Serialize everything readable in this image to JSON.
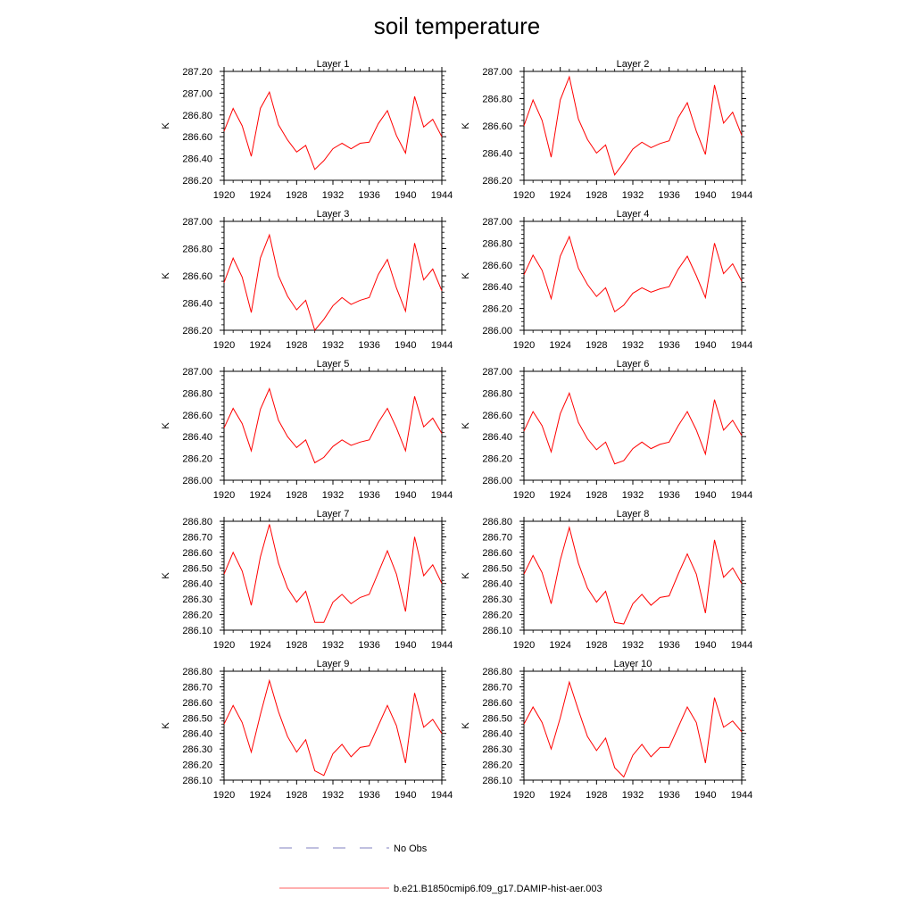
{
  "title": "soil temperature",
  "legend": {
    "entries": [
      {
        "label": "No Obs",
        "color": "#8080c0",
        "dash": true
      },
      {
        "label": "b.e21.B1850cmip6.f09_g17.DAMIP-hist-aer.003",
        "color": "#ff6060",
        "dash": false
      }
    ]
  },
  "colors": {
    "series": "#ff0000",
    "axes": "#000000"
  },
  "chart_data": [
    {
      "type": "line",
      "title": "Layer 1",
      "ylabel": "K",
      "xlabel": "",
      "x": [
        1920,
        1921,
        1922,
        1923,
        1924,
        1925,
        1926,
        1927,
        1928,
        1929,
        1930,
        1931,
        1932,
        1933,
        1934,
        1935,
        1936,
        1937,
        1938,
        1939,
        1940,
        1941,
        1942,
        1943,
        1944
      ],
      "xticks": [
        1920,
        1924,
        1928,
        1932,
        1936,
        1940,
        1944
      ],
      "xlim": [
        1920,
        1944
      ],
      "ylim": [
        286.2,
        287.2
      ],
      "yticks": [
        286.2,
        286.4,
        286.6,
        286.8,
        287.0,
        287.2
      ],
      "ytick_labels": [
        "286.20",
        "286.40",
        "286.60",
        "286.80",
        "287.00",
        "287.20"
      ],
      "series": [
        {
          "values": [
            286.65,
            286.86,
            286.7,
            286.42,
            286.86,
            287.01,
            286.71,
            286.57,
            286.46,
            286.52,
            286.3,
            286.38,
            286.49,
            286.54,
            286.49,
            286.54,
            286.55,
            286.72,
            286.84,
            286.61,
            286.45,
            286.97,
            286.69,
            286.76,
            286.6
          ]
        }
      ]
    },
    {
      "type": "line",
      "title": "Layer 2",
      "ylabel": "K",
      "xlabel": "",
      "x": [
        1920,
        1921,
        1922,
        1923,
        1924,
        1925,
        1926,
        1927,
        1928,
        1929,
        1930,
        1931,
        1932,
        1933,
        1934,
        1935,
        1936,
        1937,
        1938,
        1939,
        1940,
        1941,
        1942,
        1943,
        1944
      ],
      "xticks": [
        1920,
        1924,
        1928,
        1932,
        1936,
        1940,
        1944
      ],
      "xlim": [
        1920,
        1944
      ],
      "ylim": [
        286.2,
        287.0
      ],
      "yticks": [
        286.2,
        286.4,
        286.6,
        286.8,
        287.0
      ],
      "ytick_labels": [
        "286.20",
        "286.40",
        "286.60",
        "286.80",
        "287.00"
      ],
      "series": [
        {
          "values": [
            286.6,
            286.79,
            286.64,
            286.37,
            286.79,
            286.96,
            286.65,
            286.5,
            286.4,
            286.46,
            286.24,
            286.33,
            286.43,
            286.48,
            286.44,
            286.47,
            286.49,
            286.66,
            286.77,
            286.56,
            286.39,
            286.9,
            286.62,
            286.7,
            286.53
          ]
        }
      ]
    },
    {
      "type": "line",
      "title": "Layer 3",
      "ylabel": "K",
      "xlabel": "",
      "x": [
        1920,
        1921,
        1922,
        1923,
        1924,
        1925,
        1926,
        1927,
        1928,
        1929,
        1930,
        1931,
        1932,
        1933,
        1934,
        1935,
        1936,
        1937,
        1938,
        1939,
        1940,
        1941,
        1942,
        1943,
        1944
      ],
      "xticks": [
        1920,
        1924,
        1928,
        1932,
        1936,
        1940,
        1944
      ],
      "xlim": [
        1920,
        1944
      ],
      "ylim": [
        286.2,
        287.0
      ],
      "yticks": [
        286.2,
        286.4,
        286.6,
        286.8,
        287.0
      ],
      "ytick_labels": [
        "286.20",
        "286.40",
        "286.60",
        "286.80",
        "287.00"
      ],
      "series": [
        {
          "values": [
            286.55,
            286.73,
            286.59,
            286.33,
            286.73,
            286.9,
            286.6,
            286.45,
            286.35,
            286.42,
            286.2,
            286.28,
            286.38,
            286.44,
            286.39,
            286.42,
            286.44,
            286.61,
            286.72,
            286.51,
            286.34,
            286.84,
            286.57,
            286.65,
            286.49
          ]
        }
      ]
    },
    {
      "type": "line",
      "title": "Layer 4",
      "ylabel": "K",
      "xlabel": "",
      "x": [
        1920,
        1921,
        1922,
        1923,
        1924,
        1925,
        1926,
        1927,
        1928,
        1929,
        1930,
        1931,
        1932,
        1933,
        1934,
        1935,
        1936,
        1937,
        1938,
        1939,
        1940,
        1941,
        1942,
        1943,
        1944
      ],
      "xticks": [
        1920,
        1924,
        1928,
        1932,
        1936,
        1940,
        1944
      ],
      "xlim": [
        1920,
        1944
      ],
      "ylim": [
        286.0,
        287.0
      ],
      "yticks": [
        286.0,
        286.2,
        286.4,
        286.6,
        286.8,
        287.0
      ],
      "ytick_labels": [
        "286.00",
        "286.20",
        "286.40",
        "286.60",
        "286.80",
        "287.00"
      ],
      "series": [
        {
          "values": [
            286.51,
            286.69,
            286.55,
            286.29,
            286.68,
            286.86,
            286.57,
            286.42,
            286.31,
            286.39,
            286.17,
            286.23,
            286.34,
            286.39,
            286.35,
            286.38,
            286.4,
            286.56,
            286.68,
            286.5,
            286.3,
            286.8,
            286.52,
            286.61,
            286.45
          ]
        }
      ]
    },
    {
      "type": "line",
      "title": "Layer 5",
      "ylabel": "K",
      "xlabel": "",
      "x": [
        1920,
        1921,
        1922,
        1923,
        1924,
        1925,
        1926,
        1927,
        1928,
        1929,
        1930,
        1931,
        1932,
        1933,
        1934,
        1935,
        1936,
        1937,
        1938,
        1939,
        1940,
        1941,
        1942,
        1943,
        1944
      ],
      "xticks": [
        1920,
        1924,
        1928,
        1932,
        1936,
        1940,
        1944
      ],
      "xlim": [
        1920,
        1944
      ],
      "ylim": [
        286.0,
        287.0
      ],
      "yticks": [
        286.0,
        286.2,
        286.4,
        286.6,
        286.8,
        287.0
      ],
      "ytick_labels": [
        "286.00",
        "286.20",
        "286.40",
        "286.60",
        "286.80",
        "287.00"
      ],
      "series": [
        {
          "values": [
            286.48,
            286.66,
            286.52,
            286.27,
            286.65,
            286.84,
            286.55,
            286.4,
            286.3,
            286.37,
            286.16,
            286.21,
            286.31,
            286.37,
            286.32,
            286.35,
            286.37,
            286.53,
            286.66,
            286.48,
            286.27,
            286.77,
            286.49,
            286.57,
            286.43
          ]
        }
      ]
    },
    {
      "type": "line",
      "title": "Layer 6",
      "ylabel": "K",
      "xlabel": "",
      "x": [
        1920,
        1921,
        1922,
        1923,
        1924,
        1925,
        1926,
        1927,
        1928,
        1929,
        1930,
        1931,
        1932,
        1933,
        1934,
        1935,
        1936,
        1937,
        1938,
        1939,
        1940,
        1941,
        1942,
        1943,
        1944
      ],
      "xticks": [
        1920,
        1924,
        1928,
        1932,
        1936,
        1940,
        1944
      ],
      "xlim": [
        1920,
        1944
      ],
      "ylim": [
        286.0,
        287.0
      ],
      "yticks": [
        286.0,
        286.2,
        286.4,
        286.6,
        286.8,
        287.0
      ],
      "ytick_labels": [
        "286.00",
        "286.20",
        "286.40",
        "286.60",
        "286.80",
        "287.00"
      ],
      "series": [
        {
          "values": [
            286.45,
            286.63,
            286.5,
            286.26,
            286.61,
            286.8,
            286.53,
            286.38,
            286.28,
            286.35,
            286.15,
            286.18,
            286.29,
            286.35,
            286.29,
            286.33,
            286.35,
            286.5,
            286.63,
            286.46,
            286.24,
            286.74,
            286.46,
            286.55,
            286.41
          ]
        }
      ]
    },
    {
      "type": "line",
      "title": "Layer 7",
      "ylabel": "K",
      "xlabel": "",
      "x": [
        1920,
        1921,
        1922,
        1923,
        1924,
        1925,
        1926,
        1927,
        1928,
        1929,
        1930,
        1931,
        1932,
        1933,
        1934,
        1935,
        1936,
        1937,
        1938,
        1939,
        1940,
        1941,
        1942,
        1943,
        1944
      ],
      "xticks": [
        1920,
        1924,
        1928,
        1932,
        1936,
        1940,
        1944
      ],
      "xlim": [
        1920,
        1944
      ],
      "ylim": [
        286.1,
        286.8
      ],
      "yticks": [
        286.1,
        286.2,
        286.3,
        286.4,
        286.5,
        286.6,
        286.7,
        286.8
      ],
      "ytick_labels": [
        "286.10",
        "286.20",
        "286.30",
        "286.40",
        "286.50",
        "286.60",
        "286.70",
        "286.80"
      ],
      "series": [
        {
          "values": [
            286.46,
            286.6,
            286.48,
            286.26,
            286.57,
            286.78,
            286.53,
            286.37,
            286.28,
            286.35,
            286.15,
            286.15,
            286.28,
            286.33,
            286.27,
            286.31,
            286.33,
            286.47,
            286.61,
            286.46,
            286.22,
            286.7,
            286.45,
            286.52,
            286.4
          ]
        }
      ]
    },
    {
      "type": "line",
      "title": "Layer 8",
      "ylabel": "K",
      "xlabel": "",
      "x": [
        1920,
        1921,
        1922,
        1923,
        1924,
        1925,
        1926,
        1927,
        1928,
        1929,
        1930,
        1931,
        1932,
        1933,
        1934,
        1935,
        1936,
        1937,
        1938,
        1939,
        1940,
        1941,
        1942,
        1943,
        1944
      ],
      "xticks": [
        1920,
        1924,
        1928,
        1932,
        1936,
        1940,
        1944
      ],
      "xlim": [
        1920,
        1944
      ],
      "ylim": [
        286.1,
        286.8
      ],
      "yticks": [
        286.1,
        286.2,
        286.3,
        286.4,
        286.5,
        286.6,
        286.7,
        286.8
      ],
      "ytick_labels": [
        "286.10",
        "286.20",
        "286.30",
        "286.40",
        "286.50",
        "286.60",
        "286.70",
        "286.80"
      ],
      "series": [
        {
          "values": [
            286.46,
            286.58,
            286.47,
            286.27,
            286.55,
            286.76,
            286.53,
            286.37,
            286.28,
            286.35,
            286.15,
            286.14,
            286.27,
            286.33,
            286.26,
            286.31,
            286.32,
            286.46,
            286.59,
            286.46,
            286.21,
            286.68,
            286.44,
            286.5,
            286.4
          ]
        }
      ]
    },
    {
      "type": "line",
      "title": "Layer 9",
      "ylabel": "K",
      "xlabel": "",
      "x": [
        1920,
        1921,
        1922,
        1923,
        1924,
        1925,
        1926,
        1927,
        1928,
        1929,
        1930,
        1931,
        1932,
        1933,
        1934,
        1935,
        1936,
        1937,
        1938,
        1939,
        1940,
        1941,
        1942,
        1943,
        1944
      ],
      "xticks": [
        1920,
        1924,
        1928,
        1932,
        1936,
        1940,
        1944
      ],
      "xlim": [
        1920,
        1944
      ],
      "ylim": [
        286.1,
        286.8
      ],
      "yticks": [
        286.1,
        286.2,
        286.3,
        286.4,
        286.5,
        286.6,
        286.7,
        286.8
      ],
      "ytick_labels": [
        "286.10",
        "286.20",
        "286.30",
        "286.40",
        "286.50",
        "286.60",
        "286.70",
        "286.80"
      ],
      "series": [
        {
          "values": [
            286.46,
            286.58,
            286.47,
            286.28,
            286.52,
            286.74,
            286.54,
            286.38,
            286.28,
            286.36,
            286.16,
            286.13,
            286.27,
            286.33,
            286.25,
            286.31,
            286.32,
            286.45,
            286.58,
            286.45,
            286.21,
            286.66,
            286.44,
            286.49,
            286.4
          ]
        }
      ]
    },
    {
      "type": "line",
      "title": "Layer 10",
      "ylabel": "K",
      "xlabel": "",
      "x": [
        1920,
        1921,
        1922,
        1923,
        1924,
        1925,
        1926,
        1927,
        1928,
        1929,
        1930,
        1931,
        1932,
        1933,
        1934,
        1935,
        1936,
        1937,
        1938,
        1939,
        1940,
        1941,
        1942,
        1943,
        1944
      ],
      "xticks": [
        1920,
        1924,
        1928,
        1932,
        1936,
        1940,
        1944
      ],
      "xlim": [
        1920,
        1944
      ],
      "ylim": [
        286.1,
        286.8
      ],
      "yticks": [
        286.1,
        286.2,
        286.3,
        286.4,
        286.5,
        286.6,
        286.7,
        286.8
      ],
      "ytick_labels": [
        "286.10",
        "286.20",
        "286.30",
        "286.40",
        "286.50",
        "286.60",
        "286.70",
        "286.80"
      ],
      "series": [
        {
          "values": [
            286.46,
            286.57,
            286.47,
            286.3,
            286.5,
            286.73,
            286.55,
            286.38,
            286.29,
            286.37,
            286.18,
            286.12,
            286.26,
            286.33,
            286.25,
            286.31,
            286.31,
            286.44,
            286.57,
            286.47,
            286.21,
            286.63,
            286.44,
            286.48,
            286.41
          ]
        }
      ]
    }
  ]
}
